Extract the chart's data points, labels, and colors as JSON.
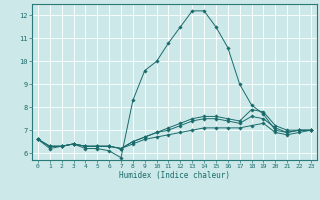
{
  "xlabel": "Humidex (Indice chaleur)",
  "ylabel": "",
  "bg_color": "#cde8e8",
  "plot_bg_color": "#cde8e8",
  "line_color": "#1a6b6b",
  "grid_color": "#ffffff",
  "axis_color": "#2a7a7a",
  "xlim": [
    -0.5,
    23.5
  ],
  "ylim": [
    5.7,
    12.5
  ],
  "yticks": [
    6,
    7,
    8,
    9,
    10,
    11,
    12
  ],
  "xticks": [
    0,
    1,
    2,
    3,
    4,
    5,
    6,
    7,
    8,
    9,
    10,
    11,
    12,
    13,
    14,
    15,
    16,
    17,
    18,
    19,
    20,
    21,
    22,
    23
  ],
  "lines": [
    {
      "x": [
        0,
        1,
        2,
        3,
        4,
        5,
        6,
        7,
        8,
        9,
        10,
        11,
        12,
        13,
        14,
        15,
        16,
        17,
        18,
        19,
        20,
        21,
        22,
        23
      ],
      "y": [
        6.6,
        6.2,
        6.3,
        6.4,
        6.2,
        6.2,
        6.1,
        5.8,
        8.3,
        9.6,
        10.0,
        10.8,
        11.5,
        12.2,
        12.2,
        11.5,
        10.6,
        9.0,
        8.1,
        7.7,
        7.0,
        6.9,
        7.0,
        7.0
      ]
    },
    {
      "x": [
        0,
        1,
        2,
        3,
        4,
        5,
        6,
        7,
        8,
        9,
        10,
        11,
        12,
        13,
        14,
        15,
        16,
        17,
        18,
        19,
        20,
        21,
        22,
        23
      ],
      "y": [
        6.6,
        6.3,
        6.3,
        6.4,
        6.3,
        6.3,
        6.3,
        6.2,
        6.5,
        6.7,
        6.9,
        7.1,
        7.3,
        7.5,
        7.6,
        7.6,
        7.5,
        7.4,
        7.9,
        7.8,
        7.2,
        7.0,
        7.0,
        7.0
      ]
    },
    {
      "x": [
        0,
        1,
        2,
        3,
        4,
        5,
        6,
        7,
        8,
        9,
        10,
        11,
        12,
        13,
        14,
        15,
        16,
        17,
        18,
        19,
        20,
        21,
        22,
        23
      ],
      "y": [
        6.6,
        6.3,
        6.3,
        6.4,
        6.3,
        6.3,
        6.3,
        6.2,
        6.5,
        6.7,
        6.9,
        7.0,
        7.2,
        7.4,
        7.5,
        7.5,
        7.4,
        7.3,
        7.6,
        7.5,
        7.1,
        6.9,
        7.0,
        7.0
      ]
    },
    {
      "x": [
        0,
        1,
        2,
        3,
        4,
        5,
        6,
        7,
        8,
        9,
        10,
        11,
        12,
        13,
        14,
        15,
        16,
        17,
        18,
        19,
        20,
        21,
        22,
        23
      ],
      "y": [
        6.6,
        6.3,
        6.3,
        6.4,
        6.3,
        6.3,
        6.3,
        6.2,
        6.4,
        6.6,
        6.7,
        6.8,
        6.9,
        7.0,
        7.1,
        7.1,
        7.1,
        7.1,
        7.2,
        7.3,
        6.9,
        6.8,
        6.9,
        7.0
      ]
    }
  ]
}
